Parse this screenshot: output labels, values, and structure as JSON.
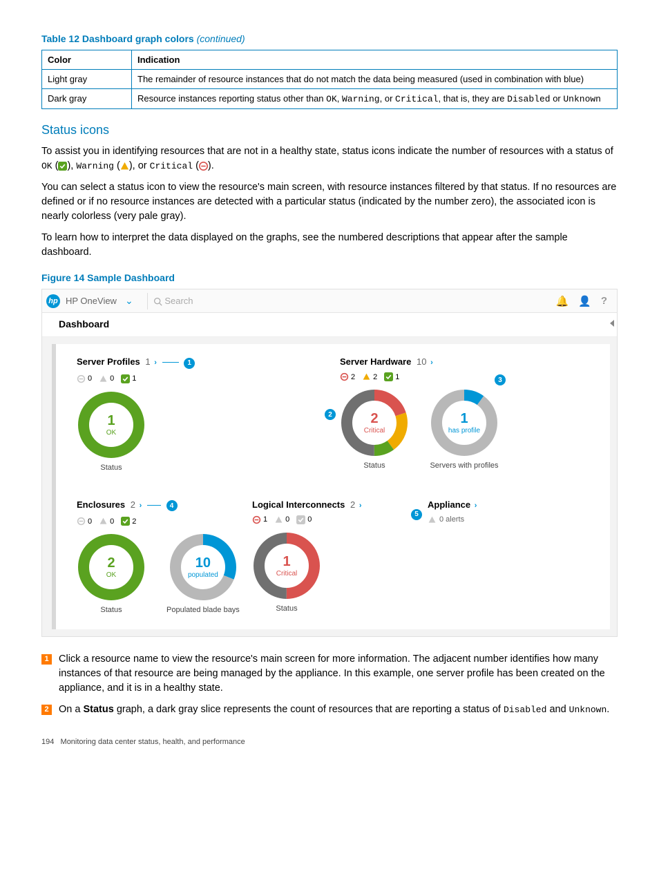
{
  "colors": {
    "hp_blue": "#007dba",
    "bright_blue": "#0096d6",
    "ok_green": "#5aa220",
    "warning_yellow": "#f0ab00",
    "critical_red": "#d9534f",
    "dark_gray": "#707070",
    "light_gray": "#b8b8b8",
    "orange_callout": "#ff7a00",
    "pale_icon": "#c8c8c8"
  },
  "table": {
    "title_prefix": "Table 12 Dashboard graph colors",
    "title_suffix": "(continued)",
    "columns": [
      "Color",
      "Indication"
    ],
    "rows": [
      {
        "color": "Light gray",
        "indication_pre": "The remainder of resource instances that do not match the data being measured (used in combination with blue)"
      },
      {
        "color": "Dark gray",
        "indication_pre": "Resource instances reporting status other than ",
        "mono_list": [
          "OK",
          "Warning",
          "Critical",
          "Disabled",
          "Unknown"
        ],
        "indication_pattern": "Resource instances reporting status other than OK, Warning, or Critical, that is, they are Disabled or Unknown"
      }
    ]
  },
  "status_icons_section": {
    "heading": "Status icons",
    "p1_a": "To assist you in identifying resources that are not in a healthy state, status icons indicate the number of resources with a status of ",
    "p1_ok": "OK",
    "p1_warn": "Warning",
    "p1_crit": "Critical",
    "p2": "You can select a status icon to view the resource's main screen, with resource instances filtered by that status. If no resources are defined or if no resource instances are detected with a particular status (indicated by the number zero), the associated icon is nearly colorless (very pale gray).",
    "p3": "To learn how to interpret the data displayed on the graphs, see the numbered descriptions that appear after the sample dashboard."
  },
  "figure": {
    "title": "Figure 14 Sample Dashboard",
    "topbar": {
      "brand": "HP OneView",
      "search_placeholder": "Search"
    },
    "dash_label": "Dashboard",
    "panels": {
      "server_profiles": {
        "title": "Server Profiles",
        "count": "1",
        "status": {
          "critical": 0,
          "warning": 0,
          "ok": 1
        },
        "callout": "1",
        "donuts": [
          {
            "caption": "Status",
            "center_num": "1",
            "center_label": "OK",
            "center_color": "#5aa220",
            "segments": [
              {
                "color": "#5aa220",
                "fraction": 1.0
              }
            ]
          }
        ]
      },
      "server_hardware": {
        "title": "Server Hardware",
        "count": "10",
        "status": {
          "critical": 2,
          "warning": 2,
          "ok": 1
        },
        "callouts": {
          "left_of_status_donut": "2",
          "right_of_profiles_donut": "3"
        },
        "donuts": [
          {
            "caption": "Status",
            "center_num": "2",
            "center_label": "Critical",
            "center_color": "#d9534f",
            "segments": [
              {
                "color": "#d9534f",
                "fraction": 0.2
              },
              {
                "color": "#f0ab00",
                "fraction": 0.2
              },
              {
                "color": "#5aa220",
                "fraction": 0.1
              },
              {
                "color": "#707070",
                "fraction": 0.5
              }
            ]
          },
          {
            "caption": "Servers with profiles",
            "center_num": "1",
            "center_label": "has profile",
            "center_color": "#0096d6",
            "segments": [
              {
                "color": "#0096d6",
                "fraction": 0.1
              },
              {
                "color": "#b8b8b8",
                "fraction": 0.9
              }
            ]
          }
        ]
      },
      "enclosures": {
        "title": "Enclosures",
        "count": "2",
        "status": {
          "critical": 0,
          "warning": 0,
          "ok": 2
        },
        "callout": "4",
        "donuts": [
          {
            "caption": "Status",
            "center_num": "2",
            "center_label": "OK",
            "center_color": "#5aa220",
            "segments": [
              {
                "color": "#5aa220",
                "fraction": 1.0
              }
            ]
          },
          {
            "caption": "Populated blade bays",
            "center_num": "10",
            "center_label": "populated",
            "center_color": "#0096d6",
            "segments": [
              {
                "color": "#0096d6",
                "fraction": 0.31
              },
              {
                "color": "#b8b8b8",
                "fraction": 0.69
              }
            ]
          }
        ]
      },
      "logical_interconnects": {
        "title": "Logical Interconnects",
        "count": "2",
        "status": {
          "critical": 1,
          "warning": 0,
          "ok": 0
        },
        "donuts": [
          {
            "caption": "Status",
            "center_num": "1",
            "center_label": "Critical",
            "center_color": "#d9534f",
            "segments": [
              {
                "color": "#d9534f",
                "fraction": 0.5
              },
              {
                "color": "#707070",
                "fraction": 0.5
              }
            ]
          }
        ]
      },
      "appliance": {
        "title": "Appliance",
        "callout": "5",
        "alerts_text": "0 alerts"
      }
    }
  },
  "numbered_list": [
    {
      "n": "1",
      "text_a": "Click a resource name to view the resource's main screen for more information. The adjacent number identifies how many instances of that resource are being managed by the appliance. In this example, one server profile has been created on the appliance, and it is in a healthy state."
    },
    {
      "n": "2",
      "text_a": "On a ",
      "bold": "Status",
      "text_b": " graph, a dark gray slice represents the count of resources that are reporting a status of ",
      "mono1": "Disabled",
      "text_c": " and ",
      "mono2": "Unknown",
      "text_d": "."
    }
  ],
  "footer": {
    "page_num": "194",
    "text": "Monitoring data center status, health, and performance"
  }
}
